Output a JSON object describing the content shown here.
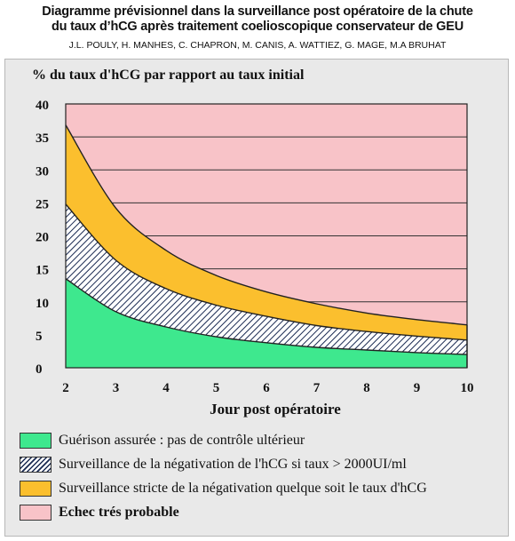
{
  "header": {
    "title_line1": "Diagramme prévisionnel dans la surveillance post opératoire de la chute",
    "title_line2": "du taux d’hCG après traitement coelioscopique conservateur de  GEU",
    "authors": "J.L. POULY, H. MANHES, C. CHAPRON, M. CANIS, A. WATTIEZ, G. MAGE, M.A BRUHAT"
  },
  "chart_data": {
    "type": "area",
    "ylabel": "% du taux d'hCG par rapport au taux initial",
    "xlabel": "Jour post opératoire",
    "xlim": [
      2,
      10
    ],
    "ylim": [
      0,
      40
    ],
    "x_ticks": [
      2,
      3,
      4,
      5,
      6,
      7,
      8,
      9,
      10
    ],
    "x_tick_labels": [
      "2",
      "3",
      "4",
      "5",
      "6",
      "7",
      "8",
      "9",
      "10"
    ],
    "y_ticks": [
      0,
      5,
      10,
      15,
      20,
      25,
      30,
      35,
      40
    ],
    "y_tick_labels": [
      "0",
      "5",
      "10",
      "15",
      "20",
      "25",
      "30",
      "35",
      "40"
    ],
    "grid": true,
    "x": [
      2,
      3,
      4,
      5,
      6,
      7,
      8,
      9,
      10
    ],
    "boundaries": [
      {
        "key": "green_top",
        "values": [
          13.5,
          8.5,
          6.2,
          4.7,
          3.8,
          3.1,
          2.7,
          2.3,
          2.0
        ]
      },
      {
        "key": "hatch_top",
        "values": [
          24.8,
          16.3,
          12.0,
          9.5,
          7.8,
          6.4,
          5.5,
          4.8,
          4.2
        ]
      },
      {
        "key": "orange_top",
        "values": [
          36.8,
          24.2,
          17.8,
          14.0,
          11.5,
          9.7,
          8.3,
          7.3,
          6.5
        ]
      }
    ],
    "legend": [
      {
        "label": "Guérison assurée : pas de contrôle ultérieur",
        "color": "#3ee88e",
        "pattern": "solid"
      },
      {
        "label": "Surveillance de la négativation de l'hCG si taux > 2000UI/ml",
        "color": "#1a2a52",
        "pattern": "hatch"
      },
      {
        "label": "Surveillance stricte de la négativation quelque soit le taux d'hCG",
        "color": "#fbbf2e",
        "pattern": "solid"
      },
      {
        "label": "Echec trés probable",
        "color": "#f8c3c8",
        "pattern": "solid"
      }
    ],
    "legend_position": "bottom"
  },
  "colors": {
    "background_pink": "#f8c3c8",
    "orange": "#fbbf2e",
    "green": "#3ee88e",
    "hatch": "#1a2a52",
    "panel": "#e9e9e9"
  }
}
